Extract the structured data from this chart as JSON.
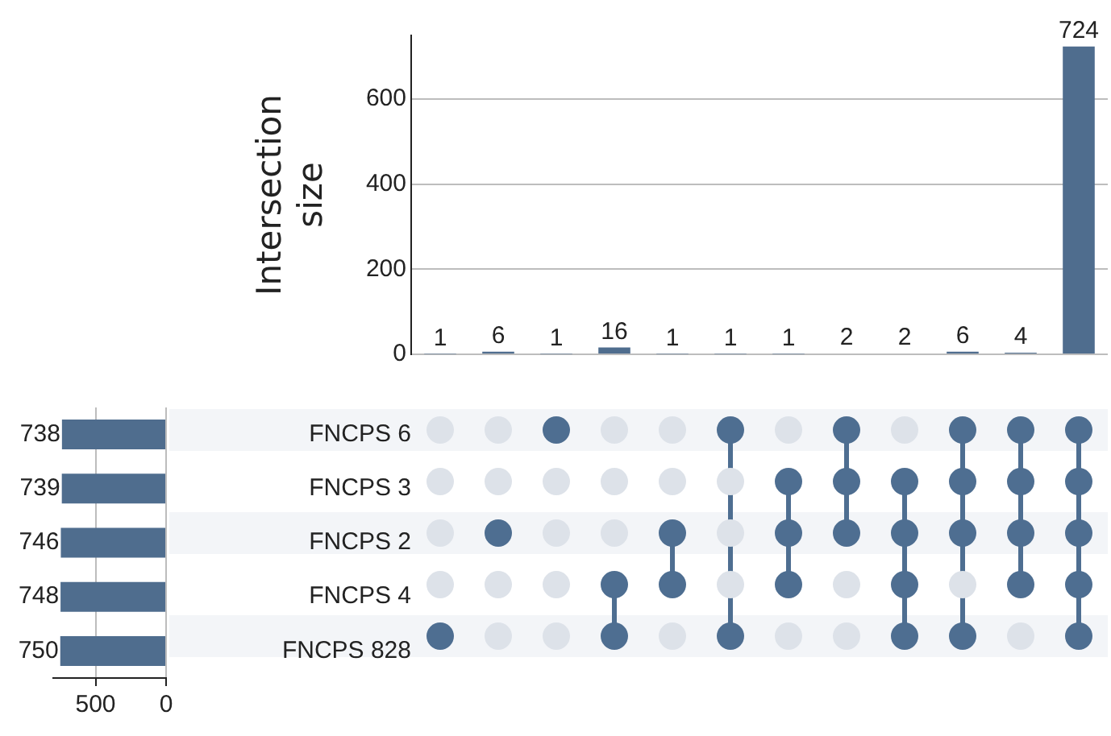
{
  "chart_data": [
    {
      "type": "bar",
      "ylabel": "Intersection size",
      "categories": [
        null,
        null,
        null,
        null,
        null,
        null,
        null,
        null,
        null,
        null,
        null,
        null
      ],
      "values": [
        1,
        6,
        1,
        16,
        1,
        1,
        1,
        2,
        2,
        6,
        4,
        724
      ],
      "color": "#4f6d8e",
      "ylim": [
        0,
        750
      ],
      "yticks": [
        0,
        200,
        400,
        600
      ],
      "grid": "y",
      "data_labels": true,
      "tick_labels": "y"
    },
    {
      "type": "bar",
      "orientation": "horizontal",
      "categories": [
        "FNCPS 6",
        "FNCPS 3",
        "FNCPS 2",
        "FNCPS 4",
        "FNCPS 828"
      ],
      "values": [
        738,
        739,
        746,
        748,
        750
      ],
      "color": "#4f6d8e",
      "xlim": [
        800,
        0
      ],
      "xticks": [
        500,
        0
      ],
      "grid": "x",
      "data_labels": true
    }
  ]
}
